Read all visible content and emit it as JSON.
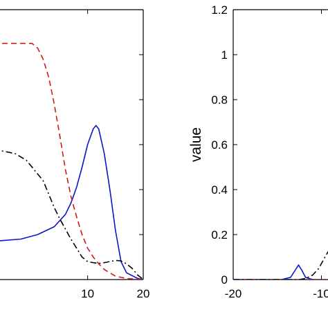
{
  "chart_data": [
    {
      "type": "line",
      "title": "",
      "xlabel": "",
      "ylabel": "",
      "xlim": [
        -7,
        20
      ],
      "ylim": [
        0,
        1.2
      ],
      "x_tick_labels": [
        "10",
        "20"
      ],
      "x_ticks": [
        10,
        20
      ],
      "y_ticks": [
        0.2,
        0.4,
        0.6,
        0.8,
        1.0,
        1.2
      ],
      "grid": false,
      "series": [
        {
          "color": "#0a14c8",
          "style": "solid",
          "points": [
            [
              -7,
              0.17
            ],
            [
              -2,
              0.18
            ],
            [
              1,
              0.2
            ],
            [
              4,
              0.235
            ],
            [
              6,
              0.29
            ],
            [
              7,
              0.34
            ],
            [
              8,
              0.41
            ],
            [
              9,
              0.5
            ],
            [
              10,
              0.6
            ],
            [
              11,
              0.67
            ],
            [
              11.5,
              0.685
            ],
            [
              12,
              0.67
            ],
            [
              13,
              0.56
            ],
            [
              14,
              0.4
            ],
            [
              15,
              0.22
            ],
            [
              16,
              0.08
            ],
            [
              17,
              0.03
            ],
            [
              19,
              0.005
            ],
            [
              20,
              0.0
            ]
          ]
        },
        {
          "color": "#d01818",
          "style": "dashed",
          "points": [
            [
              -7,
              1.05
            ],
            [
              0,
              1.05
            ],
            [
              1,
              1.03
            ],
            [
              2,
              0.98
            ],
            [
              3,
              0.9
            ],
            [
              4,
              0.78
            ],
            [
              5,
              0.64
            ],
            [
              6,
              0.49
            ],
            [
              7,
              0.37
            ],
            [
              8,
              0.28
            ],
            [
              9,
              0.2
            ],
            [
              10,
              0.14
            ],
            [
              11,
              0.1
            ],
            [
              12,
              0.07
            ],
            [
              13,
              0.045
            ],
            [
              14,
              0.03
            ],
            [
              15,
              0.015
            ],
            [
              17,
              0.005
            ],
            [
              20,
              0.0
            ]
          ]
        },
        {
          "color": "#000000",
          "style": "dashdot",
          "points": [
            [
              -7,
              0.58
            ],
            [
              -3,
              0.56
            ],
            [
              -1,
              0.53
            ],
            [
              0,
              0.5
            ],
            [
              1,
              0.47
            ],
            [
              2,
              0.44
            ],
            [
              3,
              0.38
            ],
            [
              4,
              0.32
            ],
            [
              5,
              0.27
            ],
            [
              6,
              0.225
            ],
            [
              7,
              0.18
            ],
            [
              8,
              0.14
            ],
            [
              9,
              0.1
            ],
            [
              10,
              0.08
            ],
            [
              11,
              0.075
            ],
            [
              12,
              0.072
            ],
            [
              13,
              0.075
            ],
            [
              14,
              0.08
            ],
            [
              15,
              0.085
            ],
            [
              16,
              0.083
            ],
            [
              17,
              0.07
            ],
            [
              18,
              0.05
            ],
            [
              19,
              0.02
            ],
            [
              20,
              0.0
            ]
          ]
        }
      ]
    },
    {
      "type": "line",
      "title": "",
      "xlabel": "",
      "ylabel": "value",
      "xlim": [
        -20,
        -8
      ],
      "ylim": [
        0,
        1.2
      ],
      "x_tick_labels": [
        "-20",
        "-10"
      ],
      "x_ticks": [
        -20,
        -10
      ],
      "y_tick_labels": [
        "0",
        "0.2",
        "0.4",
        "0.6",
        "0.8",
        "1",
        "1.2"
      ],
      "y_ticks": [
        0,
        0.2,
        0.4,
        0.6,
        0.8,
        1.0,
        1.2
      ],
      "grid": false,
      "series": [
        {
          "color": "#0a14c8",
          "style": "solid",
          "points": [
            [
              -20,
              0.0
            ],
            [
              -14.5,
              0.0
            ],
            [
              -13.5,
              0.01
            ],
            [
              -13,
              0.04
            ],
            [
              -12.6,
              0.065
            ],
            [
              -12.2,
              0.04
            ],
            [
              -11.8,
              0.01
            ],
            [
              -11,
              0.0
            ],
            [
              -8,
              0.0
            ]
          ]
        },
        {
          "color": "#d01818",
          "style": "dashed",
          "points": [
            [
              -20,
              0.0
            ],
            [
              -8,
              0.0
            ]
          ]
        },
        {
          "color": "#000000",
          "style": "dashdot",
          "points": [
            [
              -20,
              0.0
            ],
            [
              -12.5,
              0.0
            ],
            [
              -11.8,
              0.005
            ],
            [
              -11,
              0.02
            ],
            [
              -10.3,
              0.05
            ],
            [
              -9.6,
              0.1
            ],
            [
              -9,
              0.14
            ],
            [
              -8.5,
              0.16
            ],
            [
              -8,
              0.17
            ]
          ]
        }
      ]
    }
  ]
}
